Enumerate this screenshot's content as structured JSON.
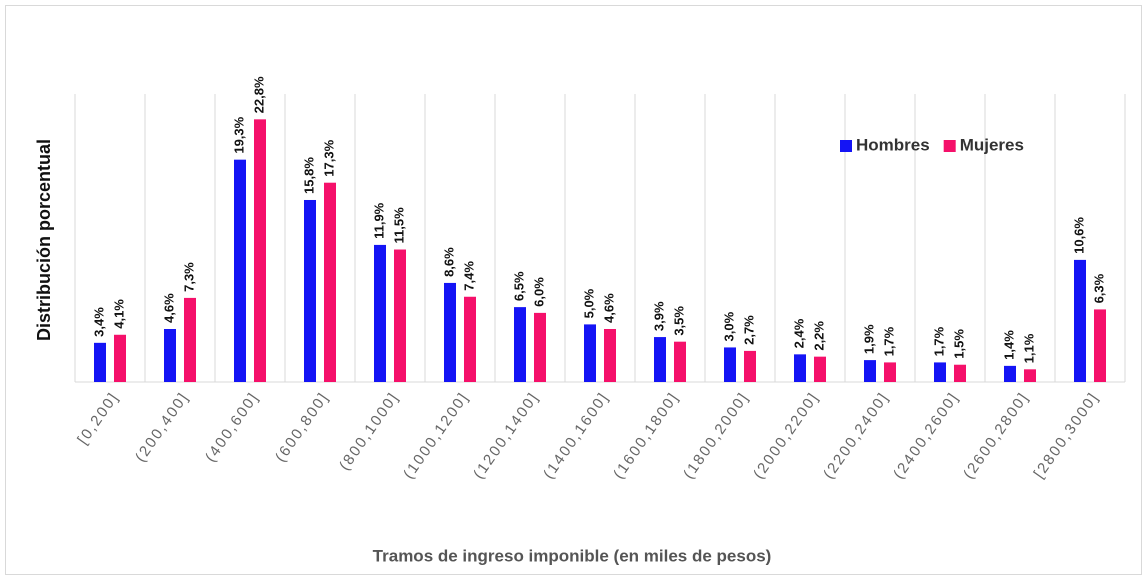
{
  "chart_data": {
    "type": "bar",
    "x_label": "Tramos de ingreso imponible (en miles de pesos)",
    "y_label": "Distribución porcentual",
    "categories": [
      "[0,200]",
      "(200,400]",
      "(400,600]",
      "(600,800]",
      "(800,1000]",
      "(1000,1200]",
      "(1200,1400]",
      "(1400,1600]",
      "(1600,1800]",
      "(1800,2000]",
      "(2000,2200]",
      "(2200,2400]",
      "(2400,2600]",
      "(2600,2800]",
      "[2800,3000]"
    ],
    "series": [
      {
        "name": "Hombres",
        "color": "#1414f5",
        "values": [
          3.4,
          4.6,
          19.3,
          15.8,
          11.9,
          8.6,
          6.5,
          5.0,
          3.9,
          3.0,
          2.4,
          1.9,
          1.7,
          1.4,
          10.6
        ],
        "value_labels": [
          "3,4%",
          "4,6%",
          "19,3%",
          "15,8%",
          "11,9%",
          "8,6%",
          "6,5%",
          "5,0%",
          "3,9%",
          "3,0%",
          "2,4%",
          "1,9%",
          "1,7%",
          "1,4%",
          "10,6%"
        ]
      },
      {
        "name": "Mujeres",
        "color": "#f5106a",
        "values": [
          4.1,
          7.3,
          22.8,
          17.3,
          11.5,
          7.4,
          6.0,
          4.6,
          3.5,
          2.7,
          2.2,
          1.7,
          1.5,
          1.1,
          6.3
        ],
        "value_labels": [
          "4,1%",
          "7,3%",
          "22,8%",
          "17,3%",
          "11,5%",
          "7,4%",
          "6,0%",
          "4,6%",
          "3,5%",
          "2,7%",
          "2,2%",
          "1,7%",
          "1,5%",
          "1,1%",
          "6,3%"
        ]
      }
    ],
    "ylim": [
      0,
      25
    ],
    "legend": "upper right"
  }
}
